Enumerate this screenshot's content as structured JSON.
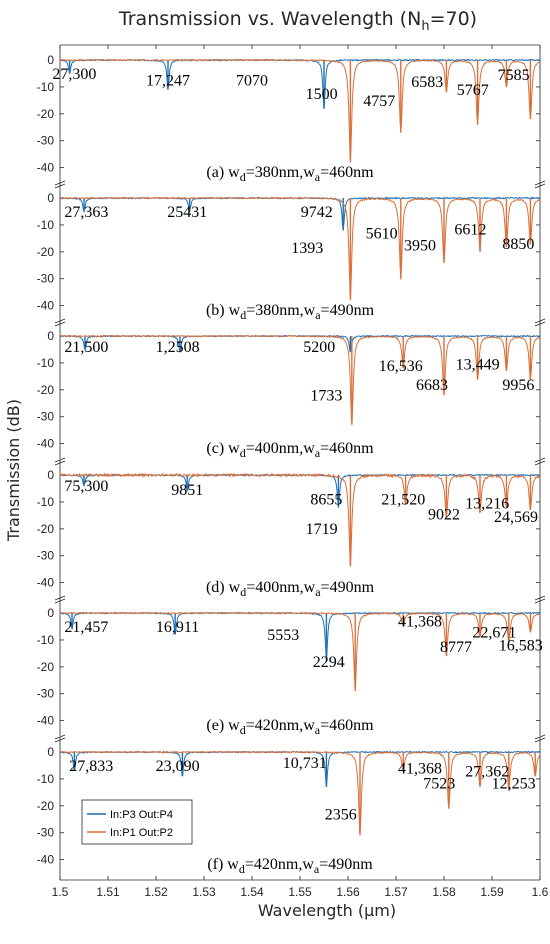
{
  "chart_data": {
    "type": "line",
    "title": "Transmission vs. Wavelength (N",
    "title_sub": "h",
    "title_end": "=70)",
    "xlabel": "Wavelength (μm)",
    "ylabel": "Transmission (dB)",
    "xlim": [
      1.5,
      1.6
    ],
    "ylim": [
      -42,
      3
    ],
    "xticks": [
      "1.5",
      "1.51",
      "1.52",
      "1.53",
      "1.54",
      "1.55",
      "1.56",
      "1.57",
      "1.58",
      "1.59",
      "1.6"
    ],
    "yticks": [
      "0",
      "-10",
      "-20",
      "-30",
      "-40"
    ],
    "legend": {
      "placement": "bottom-left",
      "entries": [
        "In:P3 Out:P4",
        "In:P1 Out:P2"
      ]
    },
    "colors": {
      "P3P4": "#1f6fb5",
      "P1P2": "#d9703a",
      "axis": "#262626"
    },
    "panels": [
      {
        "caption": {
          "a": "(a) w",
          "b": "d",
          "c": "=380nm,w",
          "d": "a",
          "e": "=460nm"
        },
        "series": [
          {
            "name": "In:P3 Out:P4",
            "dips": [
              [
                1.502,
                -5
              ],
              [
                1.5225,
                -11
              ],
              [
                1.555,
                -18
              ]
            ]
          },
          {
            "name": "In:P1 Out:P2",
            "dips": [
              [
                1.5605,
                -38
              ],
              [
                1.571,
                -27
              ],
              [
                1.5805,
                -12
              ],
              [
                1.587,
                -24
              ],
              [
                1.593,
                -10
              ],
              [
                1.598,
                -22
              ]
            ]
          }
        ],
        "annotations": [
          {
            "text": "27,300",
            "x": 1.503,
            "y": -7
          },
          {
            "text": "17,247",
            "x": 1.5225,
            "y": -9.5
          },
          {
            "text": "7070",
            "x": 1.54,
            "y": -9.5
          },
          {
            "text": "1500",
            "x": 1.5545,
            "y": -14.5
          },
          {
            "text": "4757",
            "x": 1.5665,
            "y": -17
          },
          {
            "text": "6583",
            "x": 1.5765,
            "y": -10
          },
          {
            "text": "5767",
            "x": 1.586,
            "y": -13
          },
          {
            "text": "7585",
            "x": 1.5945,
            "y": -7.5
          }
        ]
      },
      {
        "caption": {
          "a": "(b) w",
          "b": "d",
          "c": "=380nm,w",
          "d": "a",
          "e": "=490nm"
        },
        "series": [
          {
            "name": "In:P3 Out:P4",
            "dips": [
              [
                1.505,
                -5
              ],
              [
                1.527,
                -5
              ],
              [
                1.559,
                -12
              ]
            ]
          },
          {
            "name": "In:P1 Out:P2",
            "dips": [
              [
                1.5605,
                -38
              ],
              [
                1.571,
                -30
              ],
              [
                1.58,
                -24
              ],
              [
                1.5875,
                -20
              ],
              [
                1.593,
                -18
              ],
              [
                1.598,
                -17
              ]
            ]
          }
        ],
        "annotations": [
          {
            "text": "27,363",
            "x": 1.5055,
            "y": -7
          },
          {
            "text": "25431",
            "x": 1.5265,
            "y": -7
          },
          {
            "text": "9742",
            "x": 1.5535,
            "y": -7
          },
          {
            "text": "1393",
            "x": 1.5515,
            "y": -20.5
          },
          {
            "text": "5610",
            "x": 1.567,
            "y": -15
          },
          {
            "text": "3950",
            "x": 1.575,
            "y": -19.5
          },
          {
            "text": "6612",
            "x": 1.5855,
            "y": -13.5
          },
          {
            "text": "8850",
            "x": 1.5955,
            "y": -19
          }
        ]
      },
      {
        "caption": {
          "a": "(c) w",
          "b": "d",
          "c": "=400nm,w",
          "d": "a",
          "e": "=460nm"
        },
        "series": [
          {
            "name": "In:P3 Out:P4",
            "dips": [
              [
                1.5052,
                -5
              ],
              [
                1.525,
                -6
              ],
              [
                1.5605,
                -6
              ]
            ]
          },
          {
            "name": "In:P1 Out:P2",
            "dips": [
              [
                1.5608,
                -33
              ],
              [
                1.5715,
                -12
              ],
              [
                1.58,
                -22
              ],
              [
                1.587,
                -16
              ],
              [
                1.593,
                -13
              ],
              [
                1.598,
                -16
              ]
            ]
          }
        ],
        "annotations": [
          {
            "text": "21,500",
            "x": 1.5055,
            "y": -6
          },
          {
            "text": "1,2508",
            "x": 1.5245,
            "y": -6
          },
          {
            "text": "5200",
            "x": 1.554,
            "y": -6
          },
          {
            "text": "1733",
            "x": 1.5555,
            "y": -24
          },
          {
            "text": "16,536",
            "x": 1.571,
            "y": -13
          },
          {
            "text": "6683",
            "x": 1.5775,
            "y": -20
          },
          {
            "text": "13,449",
            "x": 1.587,
            "y": -12.5
          },
          {
            "text": "9956",
            "x": 1.5955,
            "y": -20
          }
        ]
      },
      {
        "caption": {
          "a": "(d) w",
          "b": "d",
          "c": "=400nm,w",
          "d": "a",
          "e": "=490nm"
        },
        "series": [
          {
            "name": "In:P3 Out:P4",
            "dips": [
              [
                1.505,
                -4
              ],
              [
                1.5265,
                -6
              ],
              [
                1.558,
                -12
              ]
            ]
          },
          {
            "name": "In:P1 Out:P2",
            "dips": [
              [
                1.5605,
                -34
              ],
              [
                1.572,
                -11
              ],
              [
                1.5805,
                -16
              ],
              [
                1.5875,
                -14
              ],
              [
                1.593,
                -12
              ],
              [
                1.598,
                -13
              ]
            ]
          }
        ],
        "annotations": [
          {
            "text": "75,300",
            "x": 1.5055,
            "y": -6
          },
          {
            "text": "9851",
            "x": 1.5265,
            "y": -7.5
          },
          {
            "text": "8655",
            "x": 1.5555,
            "y": -11
          },
          {
            "text": "1719",
            "x": 1.5545,
            "y": -22
          },
          {
            "text": "21,520",
            "x": 1.5715,
            "y": -11
          },
          {
            "text": "9022",
            "x": 1.58,
            "y": -16.5
          },
          {
            "text": "13,216",
            "x": 1.589,
            "y": -12.5
          },
          {
            "text": "24,569",
            "x": 1.595,
            "y": -17.5
          }
        ]
      },
      {
        "caption": {
          "a": "(e) w",
          "b": "d",
          "c": "=420nm,w",
          "d": "a",
          "e": "=460nm"
        },
        "series": [
          {
            "name": "In:P3 Out:P4",
            "dips": [
              [
                1.5025,
                -6
              ],
              [
                1.524,
                -8
              ],
              [
                1.5555,
                -18
              ]
            ]
          },
          {
            "name": "In:P1 Out:P2",
            "dips": [
              [
                1.5615,
                -29
              ],
              [
                1.5715,
                -5
              ],
              [
                1.5805,
                -16
              ],
              [
                1.5875,
                -9
              ],
              [
                1.5935,
                -11
              ],
              [
                1.598,
                -7
              ]
            ]
          }
        ],
        "annotations": [
          {
            "text": "21,457",
            "x": 1.5055,
            "y": -7
          },
          {
            "text": "16,911",
            "x": 1.5245,
            "y": -7
          },
          {
            "text": "5553",
            "x": 1.5465,
            "y": -10
          },
          {
            "text": "2294",
            "x": 1.556,
            "y": -20
          },
          {
            "text": "41,368",
            "x": 1.575,
            "y": -5
          },
          {
            "text": "8777",
            "x": 1.5825,
            "y": -14.5
          },
          {
            "text": "22,671",
            "x": 1.5905,
            "y": -9
          },
          {
            "text": "16,583",
            "x": 1.596,
            "y": -14
          }
        ]
      },
      {
        "caption": {
          "a": "(f) w",
          "b": "d",
          "c": "=420nm,w",
          "d": "a",
          "e": "=490nm"
        },
        "series": [
          {
            "name": "In:P3 Out:P4",
            "dips": [
              [
                1.503,
                -7
              ],
              [
                1.5255,
                -9
              ],
              [
                1.5555,
                -13
              ]
            ]
          },
          {
            "name": "In:P1 Out:P2",
            "dips": [
              [
                1.5625,
                -31
              ],
              [
                1.5715,
                -7
              ],
              [
                1.581,
                -21
              ],
              [
                1.5875,
                -13
              ],
              [
                1.5935,
                -14
              ],
              [
                1.599,
                -9
              ]
            ]
          }
        ],
        "annotations": [
          {
            "text": "27,833",
            "x": 1.5065,
            "y": -7
          },
          {
            "text": "23,090",
            "x": 1.5245,
            "y": -7
          },
          {
            "text": "10,731",
            "x": 1.551,
            "y": -6
          },
          {
            "text": "2356",
            "x": 1.5585,
            "y": -25
          },
          {
            "text": "41,368",
            "x": 1.575,
            "y": -8
          },
          {
            "text": "7523",
            "x": 1.579,
            "y": -13.5
          },
          {
            "text": "27,362",
            "x": 1.589,
            "y": -9
          },
          {
            "text": "12,253",
            "x": 1.5945,
            "y": -13.5
          }
        ]
      }
    ]
  }
}
